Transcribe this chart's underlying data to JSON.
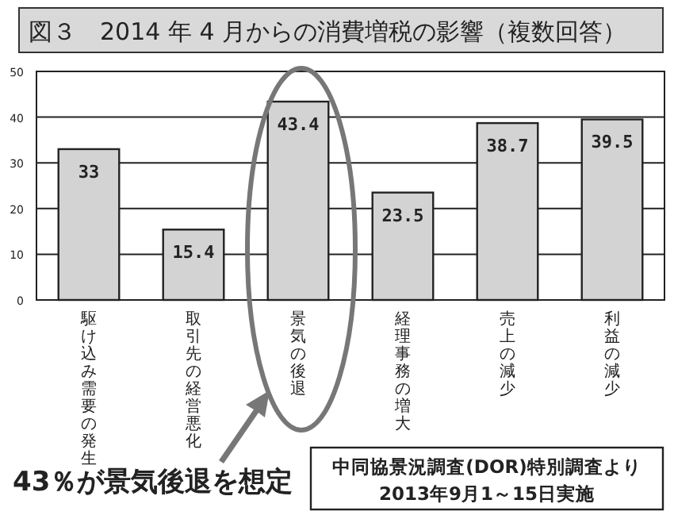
{
  "chart_data": {
    "type": "bar",
    "title": "図３　2014 年 4 月からの消費増税の影響（複数回答）",
    "categories": [
      "駆け込み需要の発生",
      "取引先の経営悪化",
      "景気の後退",
      "経理事務の増大",
      "売上の減少",
      "利益の減少"
    ],
    "values": [
      33,
      15.4,
      43.4,
      23.5,
      38.7,
      39.5
    ],
    "color": "#d3d3d3",
    "ylim": [
      0,
      50
    ],
    "yticks": [
      0,
      10,
      20,
      30,
      40,
      50
    ],
    "grid": "y",
    "data_labels": true,
    "annotations": [
      "43％が景気後退を想定",
      "中同協景況調査(DOR)特別調査より",
      "2013年9月1～15日実施"
    ]
  }
}
